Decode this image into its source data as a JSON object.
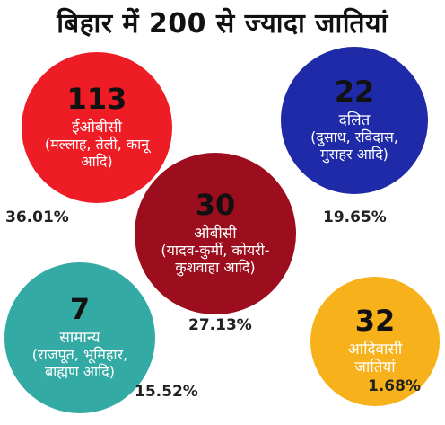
{
  "title": "बिहार में 200 से ज्यादा जातियां",
  "colors": {
    "ebc": "#ee1c25",
    "sc": "#1e2aa8",
    "obc": "#9c0d1d",
    "general": "#33aaa4",
    "st": "#f7b11b"
  },
  "groups": {
    "ebc": {
      "count": "113",
      "name": "ईओबीसी",
      "detail": "(मल्लाह, तेली, कानू आदि)",
      "percent": "36.01%"
    },
    "sc": {
      "count": "22",
      "name": "दलित",
      "detail": "(दुसाध, रविदास, मुसहर आदि)",
      "percent": "19.65%"
    },
    "obc": {
      "count": "30",
      "name": "ओबीसी",
      "detail": "(यादव-कुर्मी, कोयरी-कुशवाहा आदि)",
      "percent": "27.13%"
    },
    "general": {
      "count": "7",
      "name": "सामान्य",
      "detail": "(राजपूत, भूमिहार, ब्राह्मण आदि)",
      "percent": "15.52%"
    },
    "st": {
      "count": "32",
      "name": "आदिवासी जातियां",
      "detail": "",
      "percent": "1.68%"
    }
  },
  "chart_data": {
    "type": "bubble",
    "title": "बिहार में 200 से ज्यादा जातियां",
    "categories": [
      "ईओबीसी",
      "दलित",
      "ओबीसी",
      "सामान्य",
      "आदिवासी जातियां"
    ],
    "series": [
      {
        "name": "",
        "values": [
          113,
          22,
          30,
          7,
          32
        ]
      },
      {
        "name": "",
        "values": [
          36.01,
          19.65,
          27.13,
          15.52,
          1.68
        ]
      }
    ]
  }
}
